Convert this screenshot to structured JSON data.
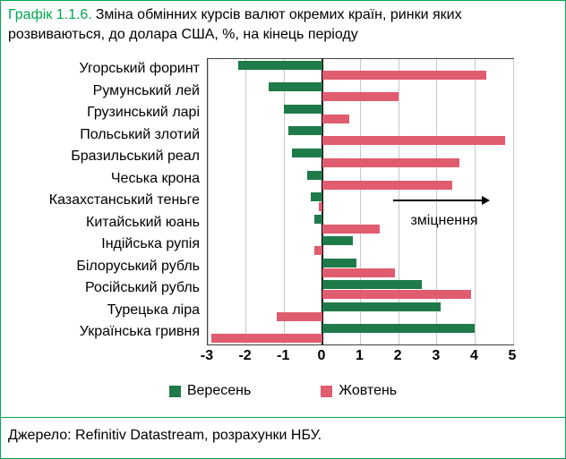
{
  "title": {
    "prefix": "Графік 1.1.6.",
    "text": "Зміна обмінних курсів валют окремих країн, ринки яких розвиваються, до долара США, %, на кінець періоду"
  },
  "source": {
    "text": "Джерело: Refinitiv Datastream, розрахунки НБУ."
  },
  "colors": {
    "accent_green": "#00A651",
    "bar_green": "#1F7A4A",
    "bar_red": "#E05C6F"
  },
  "chart_data": {
    "type": "bar",
    "orientation": "horizontal",
    "title": "Графік 1.1.6. Зміна обмінних курсів валют окремих країн, ринки яких розвиваються, до долара США, %, на кінець періоду",
    "categories": [
      "Угорський форинт",
      "Румунський лей",
      "Грузинський ларі",
      "Польський злотий",
      "Бразильський реал",
      "Чеська крона",
      "Казахстанський теньге",
      "Китайський юань",
      "Індійська рупія",
      "Білоруський рубль",
      "Російський рубль",
      "Турецька ліра",
      "Українська гривня"
    ],
    "series": [
      {
        "name": "Вересень",
        "color": "#1F7A4A",
        "values": [
          -2.2,
          -1.4,
          -1.0,
          -0.9,
          -0.8,
          -0.4,
          -0.3,
          -0.2,
          0.8,
          0.9,
          2.6,
          3.1,
          4.0
        ]
      },
      {
        "name": "Жовтень",
        "color": "#E05C6F",
        "values": [
          4.3,
          2.0,
          0.7,
          4.8,
          3.6,
          3.4,
          -0.1,
          1.5,
          -0.2,
          1.9,
          3.9,
          -1.2,
          -2.9
        ]
      }
    ],
    "xlim": [
      -3,
      5
    ],
    "xticks": [
      -3,
      -2,
      -1,
      0,
      1,
      2,
      3,
      4,
      5
    ],
    "grid": true,
    "legend_position": "bottom",
    "annotation": {
      "text": "зміцнення",
      "arrow": "right"
    }
  }
}
